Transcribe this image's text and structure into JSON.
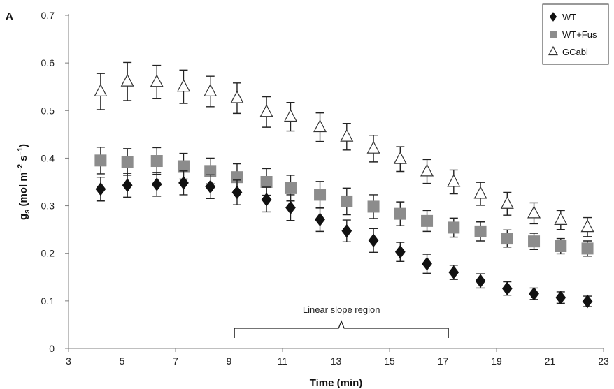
{
  "chart_data": {
    "type": "scatter",
    "panel_label": "A",
    "xlabel": "Time (min)",
    "ylabel_main": "g",
    "ylabel_sub": "s",
    "ylabel_rest": " (mol m",
    "ylabel_sup1": "−2",
    "ylabel_mid": " s",
    "ylabel_sup2": "−1",
    "ylabel_end": ")",
    "xlim": [
      3,
      23
    ],
    "ylim": [
      0,
      0.7
    ],
    "xticks": [
      "3",
      "5",
      "7",
      "9",
      "11",
      "13",
      "15",
      "17",
      "19",
      "21",
      "23"
    ],
    "yticks": [
      "0",
      "0.1",
      "0.2",
      "0.3",
      "0.4",
      "0.5",
      "0.6",
      "0.7"
    ],
    "grid": false,
    "legend_position": "top-right",
    "annotation": {
      "text": "Linear slope region",
      "x_start": 9.2,
      "x_end": 17.2
    },
    "x": [
      4.2,
      5.2,
      6.3,
      7.3,
      8.3,
      9.3,
      10.4,
      11.3,
      12.4,
      13.4,
      14.4,
      15.4,
      16.4,
      17.4,
      18.4,
      19.4,
      20.4,
      21.4,
      22.4
    ],
    "series": [
      {
        "name": "WT",
        "marker": "diamond",
        "color": "#111111",
        "y": [
          0.335,
          0.343,
          0.345,
          0.348,
          0.34,
          0.328,
          0.313,
          0.296,
          0.271,
          0.247,
          0.227,
          0.203,
          0.178,
          0.16,
          0.142,
          0.126,
          0.115,
          0.107,
          0.099
        ],
        "err": [
          0.025,
          0.025,
          0.025,
          0.025,
          0.025,
          0.026,
          0.026,
          0.027,
          0.025,
          0.023,
          0.025,
          0.02,
          0.02,
          0.015,
          0.015,
          0.014,
          0.012,
          0.012,
          0.011
        ]
      },
      {
        "name": "WT+Fus",
        "marker": "square",
        "color": "#8c8c8c",
        "y": [
          0.395,
          0.392,
          0.394,
          0.383,
          0.373,
          0.36,
          0.35,
          0.337,
          0.323,
          0.309,
          0.298,
          0.283,
          0.268,
          0.254,
          0.246,
          0.231,
          0.225,
          0.215,
          0.21
        ],
        "err": [
          0.028,
          0.028,
          0.028,
          0.027,
          0.027,
          0.028,
          0.028,
          0.027,
          0.028,
          0.028,
          0.025,
          0.025,
          0.022,
          0.02,
          0.02,
          0.018,
          0.017,
          0.016,
          0.016
        ]
      },
      {
        "name": "GCabi",
        "marker": "triangle",
        "color": "#ffffff",
        "y": [
          0.54,
          0.561,
          0.56,
          0.55,
          0.54,
          0.526,
          0.497,
          0.487,
          0.465,
          0.445,
          0.42,
          0.398,
          0.372,
          0.35,
          0.325,
          0.304,
          0.284,
          0.27,
          0.255
        ],
        "err": [
          0.038,
          0.04,
          0.035,
          0.035,
          0.032,
          0.032,
          0.032,
          0.03,
          0.03,
          0.028,
          0.028,
          0.026,
          0.025,
          0.025,
          0.024,
          0.024,
          0.022,
          0.02,
          0.02
        ]
      }
    ]
  }
}
